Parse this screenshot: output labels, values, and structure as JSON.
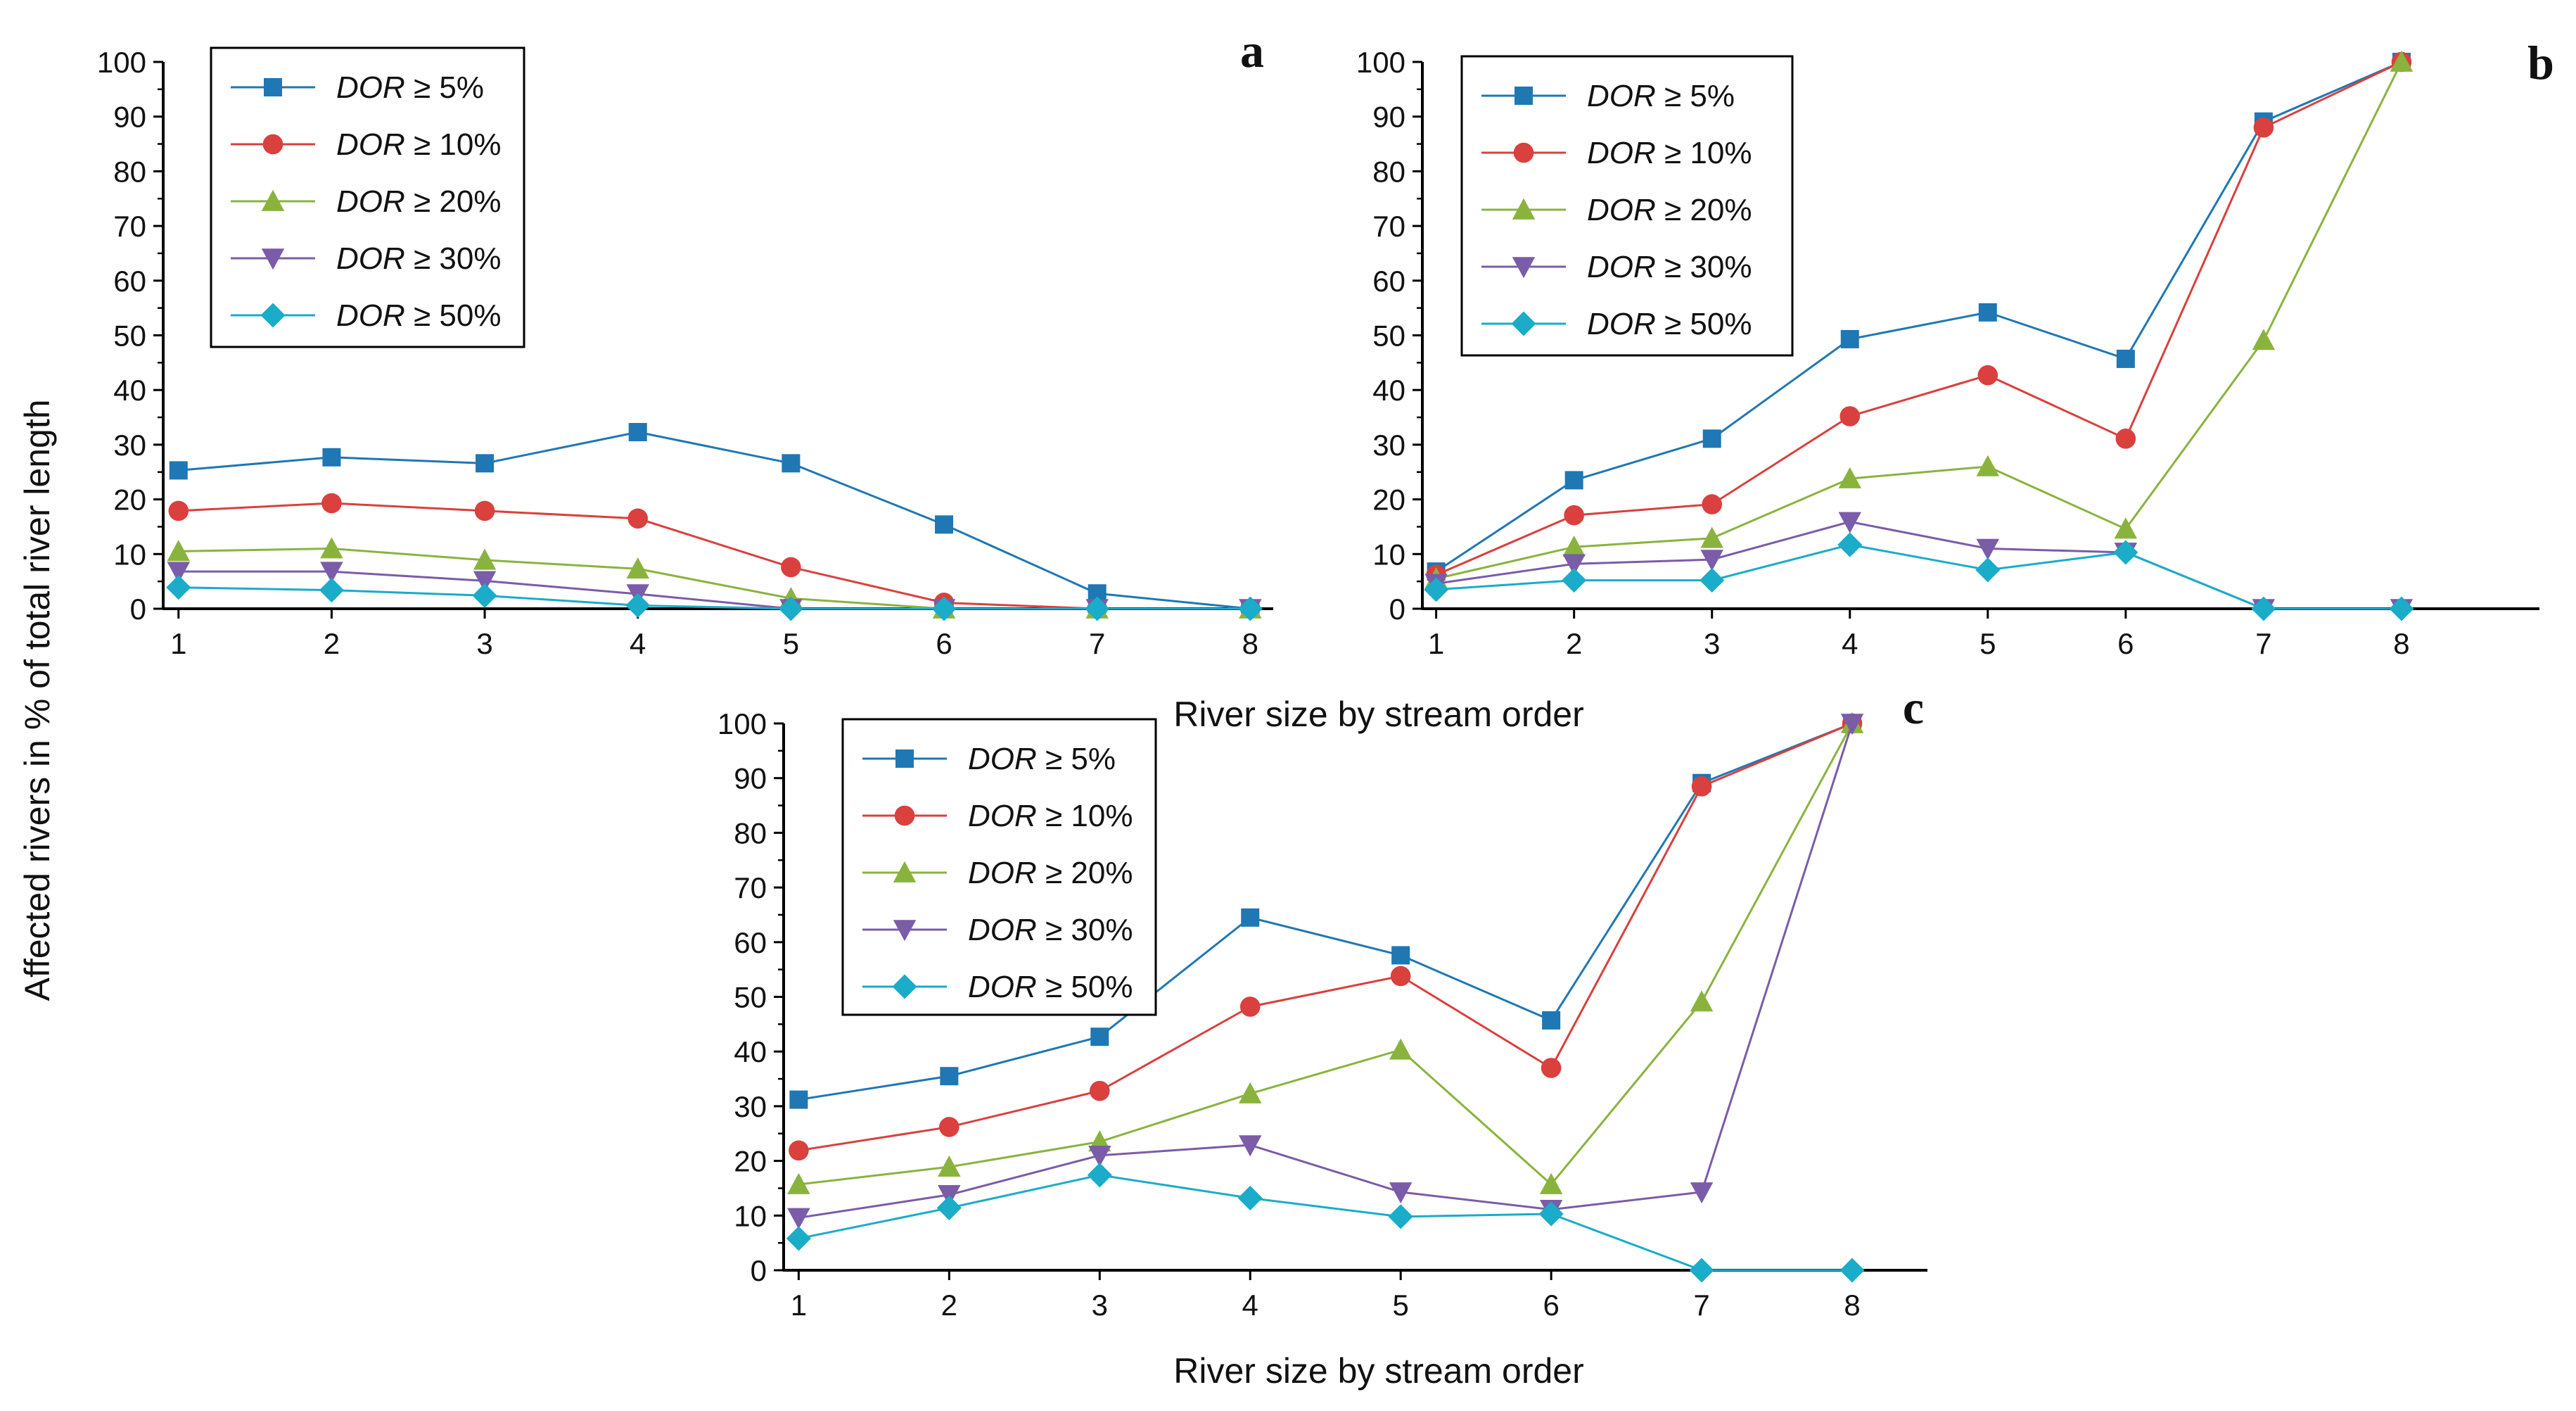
{
  "figure": {
    "ylabel": "Affected rivers in % of total river length",
    "xlabel": "River size by stream order",
    "colors": {
      "DOR5": "#1f77b4",
      "DOR10": "#d9403e",
      "DOR20": "#8ab33e",
      "DOR30": "#7a5ca8",
      "DOR50": "#1aacc8"
    }
  },
  "chart_data": [
    {
      "panel": "a",
      "type": "line",
      "x": [
        1,
        2,
        3,
        4,
        5,
        6,
        7,
        8
      ],
      "xlim": [
        0.9,
        8.15
      ],
      "ylim": [
        0,
        100
      ],
      "yticks": [
        0,
        10,
        20,
        30,
        40,
        50,
        60,
        70,
        80,
        90,
        100
      ],
      "xlabel": "",
      "series": [
        {
          "key": "DOR5",
          "prefix": "DOR",
          "suffix": " ≥ 5%",
          "marker": "square",
          "values": [
            25.3,
            27.7,
            26.6,
            32.3,
            26.6,
            15.4,
            2.8,
            0
          ]
        },
        {
          "key": "DOR10",
          "prefix": "DOR",
          "suffix": " ≥ 10%",
          "marker": "circle",
          "values": [
            17.9,
            19.3,
            17.9,
            16.5,
            7.6,
            1.1,
            0,
            0
          ]
        },
        {
          "key": "DOR20",
          "prefix": "DOR",
          "suffix": " ≥ 20%",
          "marker": "triangle-up",
          "values": [
            10.5,
            11.0,
            8.9,
            7.3,
            1.9,
            0,
            0,
            0
          ]
        },
        {
          "key": "DOR30",
          "prefix": "DOR",
          "suffix": " ≥ 30%",
          "marker": "triangle-down",
          "values": [
            6.8,
            6.8,
            5.1,
            2.7,
            0,
            0,
            0,
            0
          ]
        },
        {
          "key": "DOR50",
          "prefix": "DOR",
          "suffix": " ≥ 50%",
          "marker": "diamond",
          "values": [
            3.9,
            3.4,
            2.4,
            0.6,
            0,
            0,
            0,
            0
          ]
        }
      ]
    },
    {
      "panel": "b",
      "type": "line",
      "x": [
        1,
        2,
        3,
        4,
        5,
        6,
        7,
        8
      ],
      "xlim": [
        0.9,
        9.0
      ],
      "ylim": [
        0,
        100
      ],
      "yticks": [
        0,
        10,
        20,
        30,
        40,
        50,
        60,
        70,
        80,
        90,
        100
      ],
      "xlabel": "River size by stream order",
      "series": [
        {
          "key": "DOR5",
          "prefix": "DOR",
          "suffix": " ≥ 5%",
          "marker": "square",
          "values": [
            6.8,
            23.5,
            31.1,
            49.3,
            54.2,
            45.7,
            89.1,
            100
          ]
        },
        {
          "key": "DOR10",
          "prefix": "DOR",
          "suffix": " ≥ 10%",
          "marker": "circle",
          "values": [
            6.2,
            17.1,
            19.1,
            35.2,
            42.7,
            31.1,
            88.0,
            100
          ]
        },
        {
          "key": "DOR20",
          "prefix": "DOR",
          "suffix": " ≥ 20%",
          "marker": "triangle-up",
          "values": [
            5.5,
            11.3,
            12.9,
            23.8,
            26.0,
            14.6,
            49.1,
            100
          ]
        },
        {
          "key": "DOR30",
          "prefix": "DOR",
          "suffix": " ≥ 30%",
          "marker": "triangle-down",
          "values": [
            4.6,
            8.2,
            9.0,
            15.9,
            11.0,
            10.3,
            0,
            0
          ]
        },
        {
          "key": "DOR50",
          "prefix": "DOR",
          "suffix": " ≥ 50%",
          "marker": "diamond",
          "values": [
            3.5,
            5.2,
            5.2,
            11.7,
            7.1,
            10.3,
            0,
            0
          ]
        }
      ]
    },
    {
      "panel": "c",
      "type": "line",
      "x": [
        1,
        2,
        3,
        4,
        5,
        6,
        7,
        8
      ],
      "xlim": [
        0.9,
        8.5
      ],
      "ylim": [
        0,
        100
      ],
      "yticks": [
        0,
        10,
        20,
        30,
        40,
        50,
        60,
        70,
        80,
        90,
        100
      ],
      "xlabel": "River size by stream order",
      "series": [
        {
          "key": "DOR5",
          "prefix": "DOR",
          "suffix": " ≥ 5%",
          "marker": "square",
          "values": [
            31.2,
            35.5,
            42.7,
            64.5,
            57.6,
            45.7,
            89.1,
            100
          ]
        },
        {
          "key": "DOR10",
          "prefix": "DOR",
          "suffix": " ≥ 10%",
          "marker": "circle",
          "values": [
            21.9,
            26.2,
            32.8,
            48.2,
            53.8,
            37.0,
            88.5,
            100
          ]
        },
        {
          "key": "DOR20",
          "prefix": "DOR",
          "suffix": " ≥ 20%",
          "marker": "triangle-up",
          "values": [
            15.7,
            18.9,
            23.5,
            32.3,
            40.3,
            15.7,
            49.1,
            100
          ]
        },
        {
          "key": "DOR30",
          "prefix": "DOR",
          "suffix": " ≥ 30%",
          "marker": "triangle-down",
          "values": [
            9.6,
            13.8,
            21.0,
            22.9,
            14.3,
            11.1,
            14.3,
            100
          ]
        },
        {
          "key": "DOR50",
          "prefix": "DOR",
          "suffix": " ≥ 50%",
          "marker": "diamond",
          "values": [
            5.8,
            11.4,
            17.4,
            13.2,
            9.8,
            10.3,
            0,
            0
          ]
        }
      ]
    }
  ]
}
